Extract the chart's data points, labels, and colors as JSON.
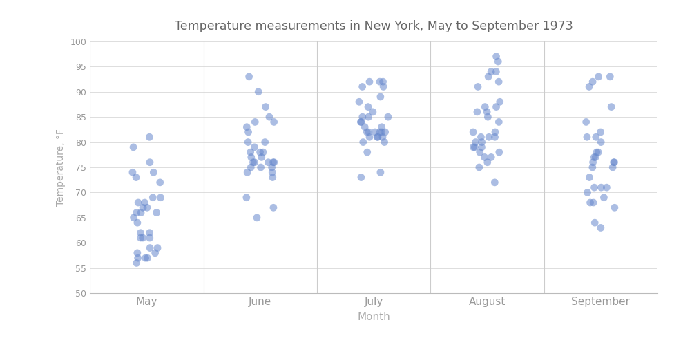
{
  "title": "Temperature measurements in New York, May to September 1973",
  "xlabel": "Month",
  "ylabel": "Temperature, °F",
  "ylim": [
    50,
    100
  ],
  "yticks": [
    50,
    55,
    60,
    65,
    70,
    75,
    80,
    85,
    90,
    95,
    100
  ],
  "months": [
    "May",
    "June",
    "July",
    "August",
    "September"
  ],
  "dot_color": "#6688cc",
  "dot_alpha": 0.55,
  "dot_size": 60,
  "background_color": "#ffffff",
  "title_color": "#666666",
  "axis_color": "#bbbbbb",
  "tick_color": "#999999",
  "label_color": "#aaaaaa",
  "vline_color": "#cccccc",
  "grid_color": "#dddddd",
  "data": {
    "May": [
      67,
      72,
      74,
      62,
      56,
      66,
      65,
      59,
      61,
      69,
      74,
      69,
      66,
      68,
      58,
      64,
      66,
      57,
      68,
      62,
      59,
      73,
      61,
      61,
      57,
      58,
      57,
      67,
      81,
      79,
      76
    ],
    "June": [
      78,
      74,
      67,
      84,
      85,
      79,
      82,
      87,
      90,
      93,
      78,
      69,
      74,
      76,
      80,
      76,
      75,
      77,
      75,
      76,
      76,
      76,
      75,
      78,
      73,
      80,
      77,
      83,
      84,
      65
    ],
    "July": [
      82,
      91,
      92,
      78,
      82,
      80,
      81,
      84,
      85,
      83,
      83,
      88,
      92,
      92,
      89,
      82,
      73,
      81,
      91,
      80,
      81,
      82,
      84,
      87,
      85,
      74,
      81,
      82,
      86,
      85,
      82
    ],
    "August": [
      81,
      81,
      82,
      86,
      85,
      87,
      82,
      80,
      79,
      77,
      79,
      76,
      78,
      78,
      77,
      72,
      75,
      79,
      81,
      86,
      88,
      97,
      94,
      96,
      94,
      91,
      92,
      93,
      87,
      84,
      80
    ],
    "September": [
      91,
      92,
      93,
      93,
      87,
      84,
      80,
      78,
      75,
      73,
      81,
      76,
      77,
      71,
      71,
      78,
      67,
      76,
      68,
      82,
      64,
      71,
      81,
      69,
      63,
      70,
      77,
      75,
      76,
      68
    ]
  }
}
